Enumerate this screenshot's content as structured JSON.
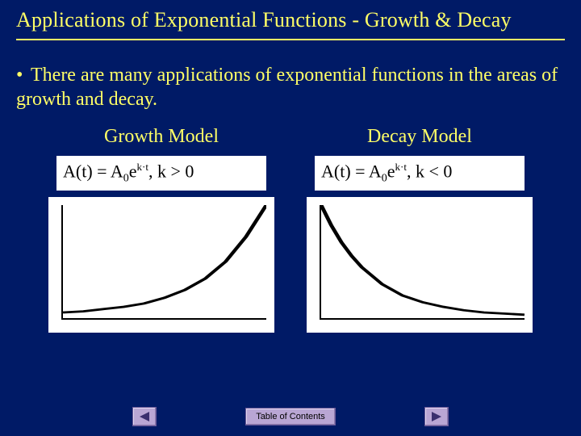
{
  "title": "Applications of Exponential Functions - Growth & Decay",
  "bullet": {
    "marker": "•",
    "text": "There are many applications of exponential functions in the areas of growth and decay."
  },
  "models": {
    "growth": {
      "label": "Growth Model",
      "formula": {
        "base": "A(t) = A",
        "sub": "0",
        "exp_prefix": "e",
        "exp": "k·t",
        "tail": ", k > 0"
      },
      "chart": {
        "type": "line",
        "stroke": "#000000",
        "stroke_width": 2,
        "background": "#ffffff",
        "points": [
          [
            0,
            0.05
          ],
          [
            0.1,
            0.06
          ],
          [
            0.2,
            0.08
          ],
          [
            0.3,
            0.1
          ],
          [
            0.4,
            0.13
          ],
          [
            0.5,
            0.18
          ],
          [
            0.6,
            0.25
          ],
          [
            0.7,
            0.35
          ],
          [
            0.8,
            0.5
          ],
          [
            0.9,
            0.72
          ],
          [
            1.0,
            1.0
          ]
        ]
      }
    },
    "decay": {
      "label": "Decay Model",
      "formula": {
        "base": "A(t) = A",
        "sub": "0",
        "exp_prefix": "e",
        "exp": "k·t",
        "tail": ", k < 0"
      },
      "chart": {
        "type": "line",
        "stroke": "#000000",
        "stroke_width": 2,
        "background": "#ffffff",
        "points": [
          [
            0,
            1.0
          ],
          [
            0.05,
            0.82
          ],
          [
            0.1,
            0.67
          ],
          [
            0.15,
            0.55
          ],
          [
            0.2,
            0.45
          ],
          [
            0.3,
            0.3
          ],
          [
            0.4,
            0.2
          ],
          [
            0.5,
            0.14
          ],
          [
            0.6,
            0.1
          ],
          [
            0.7,
            0.07
          ],
          [
            0.8,
            0.05
          ],
          [
            0.9,
            0.04
          ],
          [
            1.0,
            0.03
          ]
        ]
      }
    }
  },
  "footer": {
    "prev_icon": "triangle-left",
    "toc_label": "Table of Contents",
    "next_icon": "triangle-right",
    "button_bg": "#b9a6d4",
    "arrow_fill": "#3a2f6e"
  },
  "colors": {
    "page_bg": "#001a66",
    "text": "#ffff66",
    "rule": "#ffff66",
    "panel_bg": "#ffffff",
    "axis": "#000000"
  }
}
